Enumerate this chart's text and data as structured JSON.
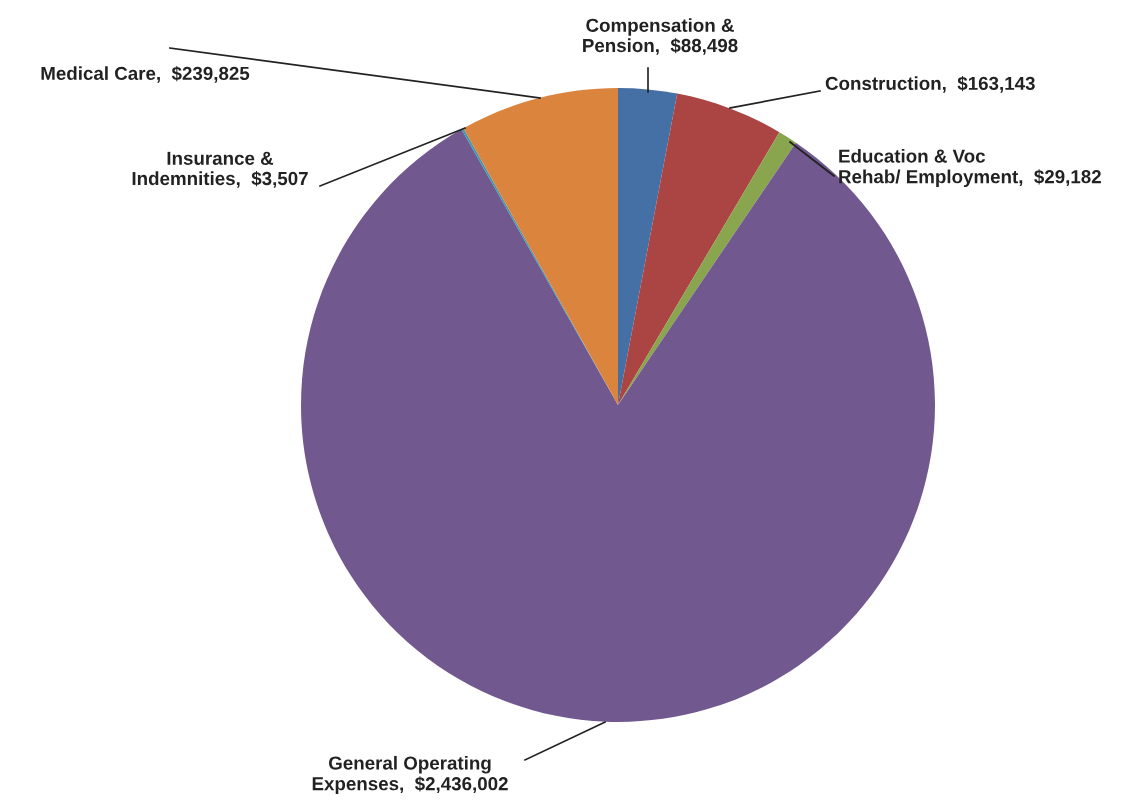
{
  "chart_data": {
    "type": "pie",
    "categories": [
      "Compensation &\nPension",
      "Construction",
      "Education & Voc\nRehab/ Employment",
      "General Operating\nExpenses",
      "Insurance &\nIndemnities",
      "Medical Care"
    ],
    "values": [
      88498,
      163143,
      29182,
      2436002,
      3507,
      239825
    ],
    "value_labels": [
      "$88,498",
      "$163,143",
      "$29,182",
      "$2,436,002",
      "$3,507",
      "$239,825"
    ],
    "colors": [
      "#4470a6",
      "#ab4543",
      "#89a54e",
      "#71588f",
      "#4198af",
      "#db843d"
    ]
  }
}
